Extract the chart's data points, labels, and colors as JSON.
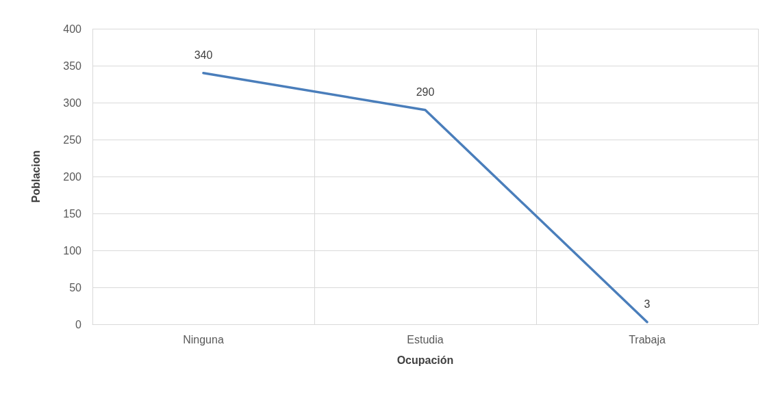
{
  "chart_data": {
    "type": "line",
    "xlabel": "Ocupación",
    "ylabel": "Poblacion",
    "categories": [
      "Ninguna",
      "Estudia",
      "Trabaja"
    ],
    "series": [
      {
        "color": "#4a7ebb",
        "values": [
          340,
          290,
          3
        ]
      }
    ],
    "ylim": [
      0,
      400
    ],
    "yticks": [
      0,
      50,
      100,
      150,
      200,
      250,
      300,
      350,
      400
    ],
    "grid": true,
    "data_labels": true,
    "marker": "none",
    "line_style": "solid"
  }
}
